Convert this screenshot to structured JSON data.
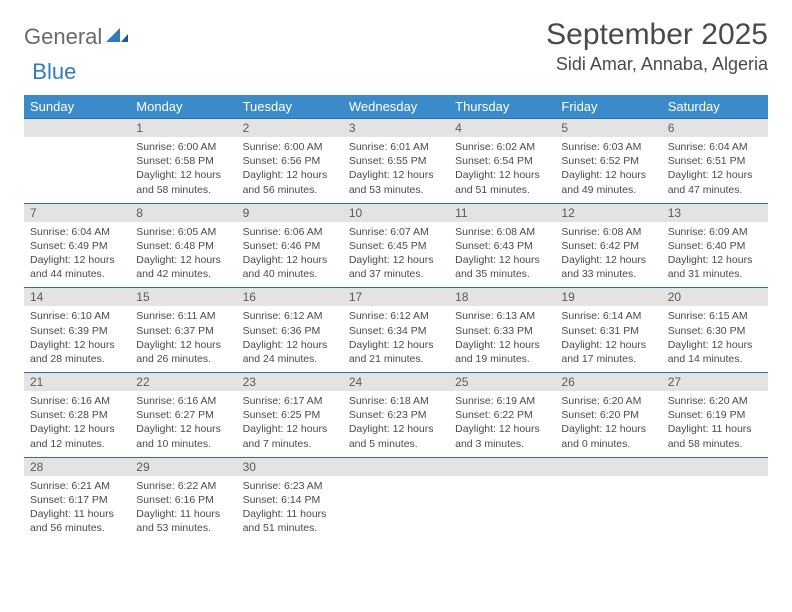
{
  "brand": {
    "part1": "General",
    "part2": "Blue"
  },
  "title": "September 2025",
  "location": "Sidi Amar, Annaba, Algeria",
  "colors": {
    "header_bg": "#3b8bca",
    "header_text": "#ffffff",
    "daynum_bg": "#e3e3e3",
    "border": "#2f6fa8",
    "text": "#4a4a4a",
    "brand_blue": "#2f7bbf",
    "brand_gray": "#6a6a6a",
    "page_bg": "#ffffff"
  },
  "typography": {
    "title_size": 30,
    "location_size": 18,
    "header_size": 13,
    "body_size": 10.5
  },
  "day_headers": [
    "Sunday",
    "Monday",
    "Tuesday",
    "Wednesday",
    "Thursday",
    "Friday",
    "Saturday"
  ],
  "weeks": [
    {
      "nums": [
        "",
        "1",
        "2",
        "3",
        "4",
        "5",
        "6"
      ],
      "cells": [
        null,
        {
          "sr": "Sunrise: 6:00 AM",
          "ss": "Sunset: 6:58 PM",
          "dl": "Daylight: 12 hours and 58 minutes."
        },
        {
          "sr": "Sunrise: 6:00 AM",
          "ss": "Sunset: 6:56 PM",
          "dl": "Daylight: 12 hours and 56 minutes."
        },
        {
          "sr": "Sunrise: 6:01 AM",
          "ss": "Sunset: 6:55 PM",
          "dl": "Daylight: 12 hours and 53 minutes."
        },
        {
          "sr": "Sunrise: 6:02 AM",
          "ss": "Sunset: 6:54 PM",
          "dl": "Daylight: 12 hours and 51 minutes."
        },
        {
          "sr": "Sunrise: 6:03 AM",
          "ss": "Sunset: 6:52 PM",
          "dl": "Daylight: 12 hours and 49 minutes."
        },
        {
          "sr": "Sunrise: 6:04 AM",
          "ss": "Sunset: 6:51 PM",
          "dl": "Daylight: 12 hours and 47 minutes."
        }
      ]
    },
    {
      "nums": [
        "7",
        "8",
        "9",
        "10",
        "11",
        "12",
        "13"
      ],
      "cells": [
        {
          "sr": "Sunrise: 6:04 AM",
          "ss": "Sunset: 6:49 PM",
          "dl": "Daylight: 12 hours and 44 minutes."
        },
        {
          "sr": "Sunrise: 6:05 AM",
          "ss": "Sunset: 6:48 PM",
          "dl": "Daylight: 12 hours and 42 minutes."
        },
        {
          "sr": "Sunrise: 6:06 AM",
          "ss": "Sunset: 6:46 PM",
          "dl": "Daylight: 12 hours and 40 minutes."
        },
        {
          "sr": "Sunrise: 6:07 AM",
          "ss": "Sunset: 6:45 PM",
          "dl": "Daylight: 12 hours and 37 minutes."
        },
        {
          "sr": "Sunrise: 6:08 AM",
          "ss": "Sunset: 6:43 PM",
          "dl": "Daylight: 12 hours and 35 minutes."
        },
        {
          "sr": "Sunrise: 6:08 AM",
          "ss": "Sunset: 6:42 PM",
          "dl": "Daylight: 12 hours and 33 minutes."
        },
        {
          "sr": "Sunrise: 6:09 AM",
          "ss": "Sunset: 6:40 PM",
          "dl": "Daylight: 12 hours and 31 minutes."
        }
      ]
    },
    {
      "nums": [
        "14",
        "15",
        "16",
        "17",
        "18",
        "19",
        "20"
      ],
      "cells": [
        {
          "sr": "Sunrise: 6:10 AM",
          "ss": "Sunset: 6:39 PM",
          "dl": "Daylight: 12 hours and 28 minutes."
        },
        {
          "sr": "Sunrise: 6:11 AM",
          "ss": "Sunset: 6:37 PM",
          "dl": "Daylight: 12 hours and 26 minutes."
        },
        {
          "sr": "Sunrise: 6:12 AM",
          "ss": "Sunset: 6:36 PM",
          "dl": "Daylight: 12 hours and 24 minutes."
        },
        {
          "sr": "Sunrise: 6:12 AM",
          "ss": "Sunset: 6:34 PM",
          "dl": "Daylight: 12 hours and 21 minutes."
        },
        {
          "sr": "Sunrise: 6:13 AM",
          "ss": "Sunset: 6:33 PM",
          "dl": "Daylight: 12 hours and 19 minutes."
        },
        {
          "sr": "Sunrise: 6:14 AM",
          "ss": "Sunset: 6:31 PM",
          "dl": "Daylight: 12 hours and 17 minutes."
        },
        {
          "sr": "Sunrise: 6:15 AM",
          "ss": "Sunset: 6:30 PM",
          "dl": "Daylight: 12 hours and 14 minutes."
        }
      ]
    },
    {
      "nums": [
        "21",
        "22",
        "23",
        "24",
        "25",
        "26",
        "27"
      ],
      "cells": [
        {
          "sr": "Sunrise: 6:16 AM",
          "ss": "Sunset: 6:28 PM",
          "dl": "Daylight: 12 hours and 12 minutes."
        },
        {
          "sr": "Sunrise: 6:16 AM",
          "ss": "Sunset: 6:27 PM",
          "dl": "Daylight: 12 hours and 10 minutes."
        },
        {
          "sr": "Sunrise: 6:17 AM",
          "ss": "Sunset: 6:25 PM",
          "dl": "Daylight: 12 hours and 7 minutes."
        },
        {
          "sr": "Sunrise: 6:18 AM",
          "ss": "Sunset: 6:23 PM",
          "dl": "Daylight: 12 hours and 5 minutes."
        },
        {
          "sr": "Sunrise: 6:19 AM",
          "ss": "Sunset: 6:22 PM",
          "dl": "Daylight: 12 hours and 3 minutes."
        },
        {
          "sr": "Sunrise: 6:20 AM",
          "ss": "Sunset: 6:20 PM",
          "dl": "Daylight: 12 hours and 0 minutes."
        },
        {
          "sr": "Sunrise: 6:20 AM",
          "ss": "Sunset: 6:19 PM",
          "dl": "Daylight: 11 hours and 58 minutes."
        }
      ]
    },
    {
      "nums": [
        "28",
        "29",
        "30",
        "",
        "",
        "",
        ""
      ],
      "cells": [
        {
          "sr": "Sunrise: 6:21 AM",
          "ss": "Sunset: 6:17 PM",
          "dl": "Daylight: 11 hours and 56 minutes."
        },
        {
          "sr": "Sunrise: 6:22 AM",
          "ss": "Sunset: 6:16 PM",
          "dl": "Daylight: 11 hours and 53 minutes."
        },
        {
          "sr": "Sunrise: 6:23 AM",
          "ss": "Sunset: 6:14 PM",
          "dl": "Daylight: 11 hours and 51 minutes."
        },
        null,
        null,
        null,
        null
      ]
    }
  ]
}
